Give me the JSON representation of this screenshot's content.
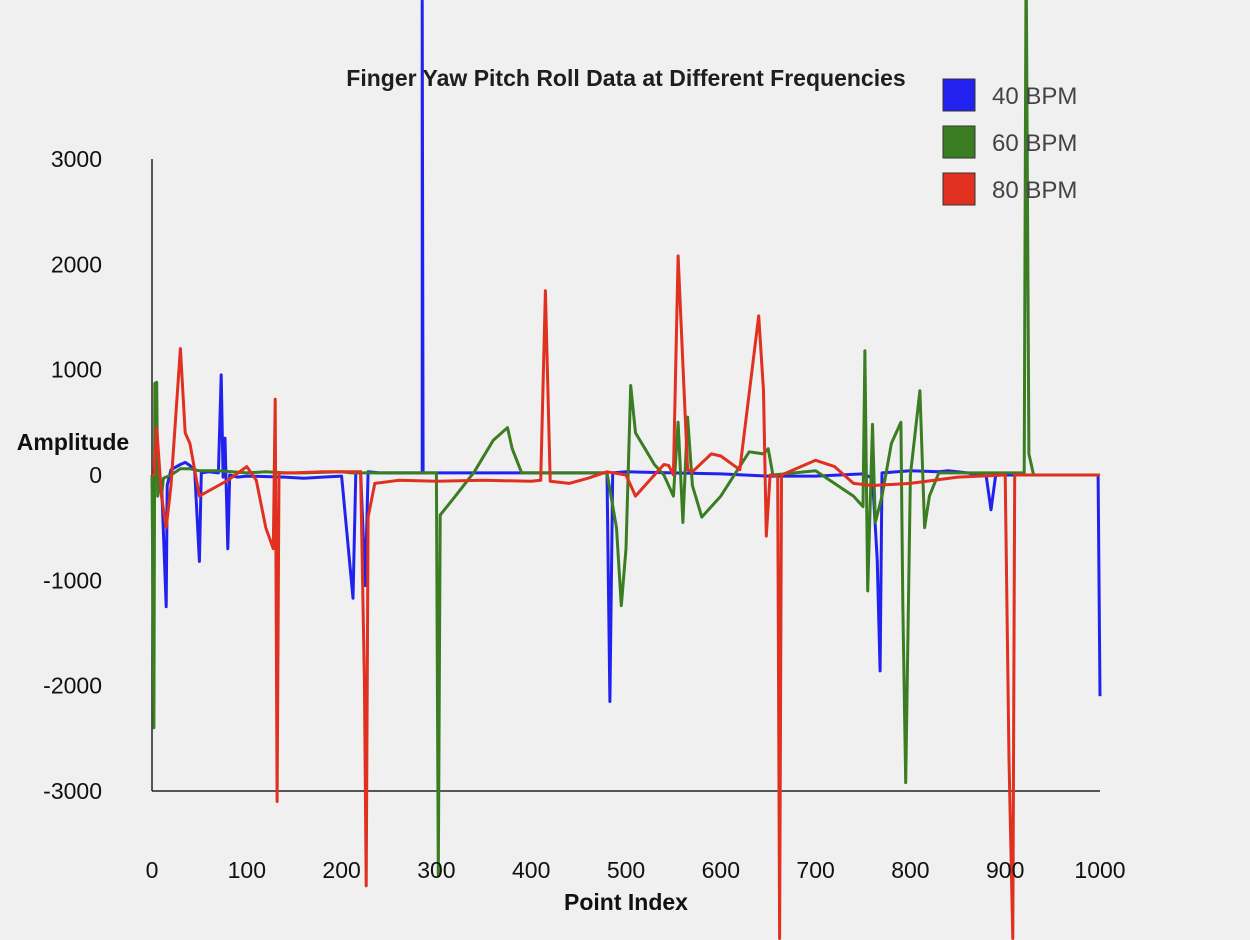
{
  "chart_data": {
    "type": "line",
    "title": "Finger Yaw Pitch Roll Data at Different Frequencies",
    "xlabel": "Point Index",
    "ylabel": "Amplitude",
    "xlim": [
      0,
      1000
    ],
    "ylim": [
      -3000,
      3000
    ],
    "x_ticks": [
      "0",
      "100",
      "200",
      "300",
      "400",
      "500",
      "600",
      "700",
      "800",
      "900",
      "1000"
    ],
    "y_ticks": [
      "3000",
      "2000",
      "1000",
      "0",
      "-1000",
      "-2000",
      "-3000"
    ],
    "grid": false,
    "legend_position": "top-right",
    "series": [
      {
        "name": "40 BPM",
        "color": "#2222ee",
        "points": [
          [
            0,
            0
          ],
          [
            5,
            -30
          ],
          [
            10,
            -60
          ],
          [
            15,
            -1250
          ],
          [
            16,
            -100
          ],
          [
            20,
            50
          ],
          [
            30,
            100
          ],
          [
            35,
            120
          ],
          [
            40,
            90
          ],
          [
            45,
            40
          ],
          [
            50,
            -820
          ],
          [
            52,
            20
          ],
          [
            60,
            30
          ],
          [
            70,
            20
          ],
          [
            73,
            950
          ],
          [
            75,
            -20
          ],
          [
            77,
            350
          ],
          [
            80,
            -700
          ],
          [
            82,
            0
          ],
          [
            90,
            -20
          ],
          [
            100,
            -10
          ],
          [
            140,
            -20
          ],
          [
            160,
            -30
          ],
          [
            180,
            -20
          ],
          [
            200,
            -10
          ],
          [
            212,
            -1170
          ],
          [
            215,
            20
          ],
          [
            220,
            30
          ],
          [
            225,
            -1050
          ],
          [
            228,
            30
          ],
          [
            240,
            20
          ],
          [
            260,
            20
          ],
          [
            270,
            20
          ],
          [
            285,
            20
          ],
          [
            285,
            4500
          ],
          [
            286,
            20
          ],
          [
            300,
            20
          ],
          [
            350,
            20
          ],
          [
            400,
            20
          ],
          [
            450,
            20
          ],
          [
            480,
            20
          ],
          [
            483,
            -2150
          ],
          [
            486,
            20
          ],
          [
            500,
            30
          ],
          [
            550,
            20
          ],
          [
            600,
            10
          ],
          [
            650,
            -10
          ],
          [
            700,
            -10
          ],
          [
            750,
            10
          ],
          [
            760,
            -30
          ],
          [
            765,
            -800
          ],
          [
            768,
            -1860
          ],
          [
            770,
            20
          ],
          [
            800,
            40
          ],
          [
            830,
            30
          ],
          [
            840,
            40
          ],
          [
            860,
            20
          ],
          [
            880,
            -10
          ],
          [
            885,
            -330
          ],
          [
            890,
            0
          ],
          [
            930,
            0
          ],
          [
            980,
            0
          ],
          [
            998,
            0
          ],
          [
            1000,
            -2100
          ]
        ]
      },
      {
        "name": "60 BPM",
        "color": "#3a7d22",
        "points": [
          [
            0,
            0
          ],
          [
            2,
            -2400
          ],
          [
            3,
            870
          ],
          [
            5,
            880
          ],
          [
            6,
            -200
          ],
          [
            8,
            0
          ],
          [
            10,
            -200
          ],
          [
            12,
            -30
          ],
          [
            20,
            0
          ],
          [
            30,
            60
          ],
          [
            40,
            60
          ],
          [
            50,
            40
          ],
          [
            70,
            40
          ],
          [
            100,
            20
          ],
          [
            120,
            30
          ],
          [
            140,
            20
          ],
          [
            160,
            20
          ],
          [
            200,
            30
          ],
          [
            210,
            20
          ],
          [
            270,
            20
          ],
          [
            300,
            20
          ],
          [
            302,
            -3800
          ],
          [
            304,
            -380
          ],
          [
            320,
            -200
          ],
          [
            340,
            30
          ],
          [
            360,
            330
          ],
          [
            375,
            450
          ],
          [
            380,
            250
          ],
          [
            390,
            20
          ],
          [
            450,
            20
          ],
          [
            480,
            20
          ],
          [
            490,
            -500
          ],
          [
            495,
            -1240
          ],
          [
            500,
            -700
          ],
          [
            505,
            850
          ],
          [
            510,
            400
          ],
          [
            520,
            250
          ],
          [
            530,
            100
          ],
          [
            540,
            0
          ],
          [
            550,
            -200
          ],
          [
            555,
            500
          ],
          [
            560,
            -450
          ],
          [
            565,
            550
          ],
          [
            570,
            -100
          ],
          [
            580,
            -400
          ],
          [
            600,
            -200
          ],
          [
            630,
            220
          ],
          [
            645,
            200
          ],
          [
            650,
            250
          ],
          [
            655,
            0
          ],
          [
            700,
            40
          ],
          [
            740,
            -200
          ],
          [
            750,
            -300
          ],
          [
            752,
            1180
          ],
          [
            755,
            -1100
          ],
          [
            760,
            480
          ],
          [
            763,
            -450
          ],
          [
            770,
            -200
          ],
          [
            780,
            300
          ],
          [
            790,
            500
          ],
          [
            792,
            -1220
          ],
          [
            795,
            -2920
          ],
          [
            800,
            0
          ],
          [
            810,
            800
          ],
          [
            815,
            -500
          ],
          [
            820,
            -200
          ],
          [
            830,
            20
          ],
          [
            850,
            20
          ],
          [
            900,
            20
          ],
          [
            920,
            20
          ],
          [
            922,
            5000
          ],
          [
            925,
            200
          ],
          [
            930,
            0
          ],
          [
            950,
            0
          ],
          [
            1000,
            0
          ]
        ]
      },
      {
        "name": "80 BPM",
        "color": "#e03020",
        "points": [
          [
            0,
            0
          ],
          [
            2,
            0
          ],
          [
            5,
            450
          ],
          [
            10,
            -200
          ],
          [
            15,
            -500
          ],
          [
            20,
            -100
          ],
          [
            30,
            1200
          ],
          [
            35,
            400
          ],
          [
            40,
            300
          ],
          [
            50,
            -200
          ],
          [
            70,
            -100
          ],
          [
            80,
            -50
          ],
          [
            100,
            80
          ],
          [
            110,
            -50
          ],
          [
            120,
            -500
          ],
          [
            128,
            -700
          ],
          [
            130,
            720
          ],
          [
            132,
            -3100
          ],
          [
            134,
            20
          ],
          [
            150,
            20
          ],
          [
            180,
            30
          ],
          [
            210,
            30
          ],
          [
            220,
            30
          ],
          [
            224,
            -1950
          ],
          [
            226,
            -3900
          ],
          [
            228,
            -400
          ],
          [
            235,
            -80
          ],
          [
            260,
            -50
          ],
          [
            300,
            -60
          ],
          [
            350,
            -50
          ],
          [
            400,
            -60
          ],
          [
            410,
            -50
          ],
          [
            415,
            1750
          ],
          [
            420,
            -60
          ],
          [
            440,
            -80
          ],
          [
            460,
            -30
          ],
          [
            480,
            30
          ],
          [
            500,
            0
          ],
          [
            510,
            -200
          ],
          [
            530,
            0
          ],
          [
            540,
            100
          ],
          [
            545,
            90
          ],
          [
            550,
            0
          ],
          [
            555,
            2080
          ],
          [
            560,
            1050
          ],
          [
            565,
            50
          ],
          [
            570,
            30
          ],
          [
            590,
            200
          ],
          [
            600,
            180
          ],
          [
            620,
            50
          ],
          [
            640,
            1510
          ],
          [
            645,
            800
          ],
          [
            648,
            -580
          ],
          [
            652,
            0
          ],
          [
            660,
            -10
          ],
          [
            662,
            -4400
          ],
          [
            664,
            0
          ],
          [
            700,
            140
          ],
          [
            720,
            80
          ],
          [
            740,
            -80
          ],
          [
            760,
            -100
          ],
          [
            800,
            -80
          ],
          [
            850,
            -20
          ],
          [
            900,
            0
          ],
          [
            904,
            -2700
          ],
          [
            908,
            -4400
          ],
          [
            910,
            0
          ],
          [
            920,
            0
          ],
          [
            1000,
            0
          ]
        ]
      }
    ]
  }
}
